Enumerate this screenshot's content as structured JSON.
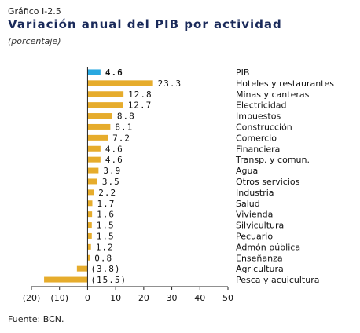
{
  "header": {
    "figure_label": "Gráfico I-2.5",
    "title": "Variación anual del PIB por actividad",
    "subtitle": "(porcentaje)"
  },
  "footer": {
    "source": "Fuente: BCN."
  },
  "colors": {
    "highlight": "#29a8e0",
    "bar": "#e6ac2c",
    "axis": "#222222"
  },
  "chart_data": {
    "type": "bar",
    "orientation": "horizontal",
    "categories": [
      "PIB",
      "Hoteles y restaurantes",
      "Minas y canteras",
      "Electricidad",
      "Impuestos",
      "Construcción",
      "Comercio",
      "Financiera",
      "Transp. y comun.",
      "Agua",
      "Otros servicios",
      "Industria",
      "Salud",
      "Vivienda",
      "Silvicultura",
      "Pecuario",
      "Admón pública",
      "Enseñanza",
      "Agricultura",
      "Pesca y acuicultura"
    ],
    "values": [
      4.6,
      23.3,
      12.8,
      12.7,
      8.8,
      8.1,
      7.2,
      4.6,
      4.6,
      3.9,
      3.5,
      2.2,
      1.7,
      1.6,
      1.5,
      1.5,
      1.2,
      0.8,
      -3.8,
      -15.5
    ],
    "value_labels": [
      "4.6",
      "23.3",
      "12.8",
      "12.7",
      "8.8",
      "8.1",
      "7.2",
      "4.6",
      "4.6",
      "3.9",
      "3.5",
      "2.2",
      "1.7",
      "1.6",
      "1.5",
      "1.5",
      "1.2",
      "0.8",
      "(3.8)",
      "(15.5)"
    ],
    "highlighted": [
      true,
      false,
      false,
      false,
      false,
      false,
      false,
      false,
      false,
      false,
      false,
      false,
      false,
      false,
      false,
      false,
      false,
      false,
      false,
      false
    ],
    "xlim": [
      -20,
      50
    ],
    "x_ticks": [
      -20,
      -10,
      0,
      10,
      20,
      30,
      40,
      50
    ],
    "x_tick_labels": [
      "(20)",
      "(10)",
      "0",
      "10",
      "20",
      "30",
      "40",
      "50"
    ],
    "grid": false,
    "legend": "none"
  }
}
